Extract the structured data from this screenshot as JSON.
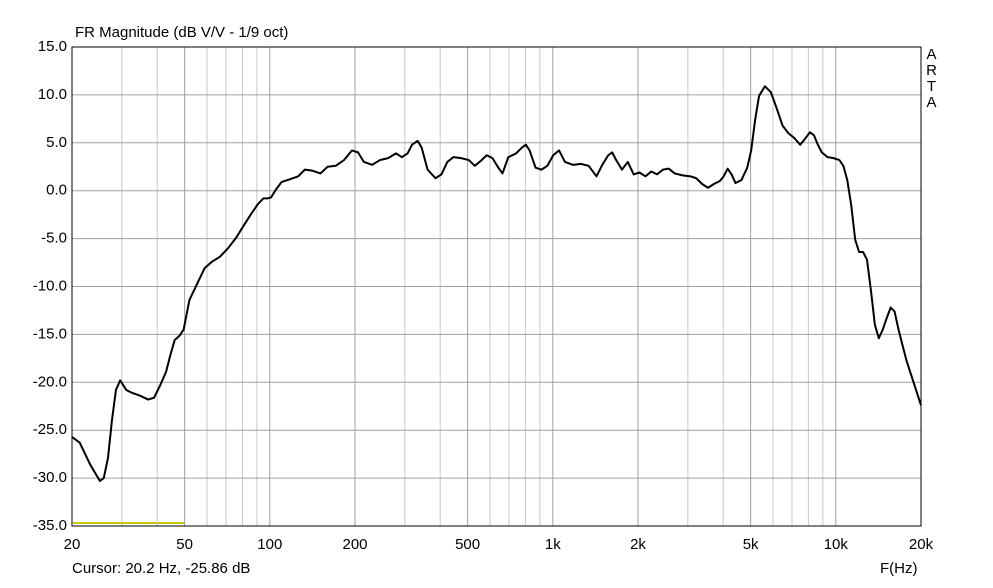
{
  "chart_data": {
    "type": "line",
    "title": "FR Magnitude (dB V/V - 1/9 oct)",
    "brand": "ARTA",
    "xlabel": "F(Hz)",
    "cursor": "Cursor: 20.2 Hz, -25.86 dB",
    "xscale": "log",
    "grid": true,
    "color": "#000000",
    "xlim": [
      20,
      20000
    ],
    "ylim": [
      -35,
      15
    ],
    "xticks": [
      20,
      50,
      100,
      200,
      500,
      {
        "value": 1000,
        "label": "1k"
      },
      {
        "value": 2000,
        "label": "2k"
      },
      {
        "value": 5000,
        "label": "5k"
      },
      {
        "value": 10000,
        "label": "10k"
      },
      {
        "value": 20000,
        "label": "20k"
      }
    ],
    "xminor": [
      30,
      40,
      60,
      70,
      80,
      90,
      300,
      400,
      600,
      700,
      800,
      900,
      3000,
      4000,
      6000,
      7000,
      8000,
      9000
    ],
    "yticks": [
      {
        "value": 15,
        "label": "15.0"
      },
      {
        "value": 10,
        "label": "10.0"
      },
      {
        "value": 5,
        "label": "5.0"
      },
      {
        "value": 0,
        "label": "0.0"
      },
      {
        "value": -5,
        "label": "-5.0"
      },
      {
        "value": -10,
        "label": "-10.0"
      },
      {
        "value": -15,
        "label": "-15.0"
      },
      {
        "value": -20,
        "label": "-20.0"
      },
      {
        "value": -25,
        "label": "-25.0"
      },
      {
        "value": -30,
        "label": "-30.0"
      },
      {
        "value": -35,
        "label": "-35.0"
      }
    ],
    "x": [
      20,
      21.3,
      23.2,
      25.1,
      25.9,
      26.8,
      27.7,
      28.6,
      29.6,
      31.1,
      32.6,
      34.8,
      37.2,
      39,
      41,
      43,
      44.3,
      46.1,
      48.1,
      49.6,
      52,
      55.2,
      58.8,
      62.5,
      66.6,
      71.2,
      76.1,
      81,
      86.5,
      90.8,
      95,
      98.2,
      101,
      105,
      110,
      118,
      126,
      133,
      141,
      151,
      160,
      171,
      183,
      195,
      205,
      215,
      230,
      245,
      262,
      279,
      293,
      307,
      318,
      333,
      344,
      361,
      385,
      404,
      424,
      445,
      474,
      505,
      530,
      556,
      584,
      612,
      642,
      664,
      696,
      742,
      778,
      803,
      828,
      869,
      912,
      957,
      1003,
      1052,
      1104,
      1177,
      1255,
      1338,
      1427,
      1496,
      1570,
      1621,
      1674,
      1755,
      1841,
      1931,
      2025,
      2124,
      2228,
      2336,
      2450,
      2570,
      2696,
      2874,
      3064,
      3213,
      3370,
      3535,
      3708,
      3889,
      4016,
      4147,
      4282,
      4422,
      4638,
      4865,
      5023,
      5187,
      5356,
      5618,
      5893,
      6181,
      6483,
      6800,
      7133,
      7482,
      7726,
      8104,
      8368,
      8641,
      8922,
      9358,
      9816,
      10296,
      10632,
      10978,
      11336,
      11706,
      12087,
      12481,
      12888,
      13308,
      13742,
      14190,
      14652,
      15130,
      15623,
      16132,
      16658,
      17201,
      17761,
      20000
    ],
    "values": [
      -25.7,
      -26.3,
      -28.6,
      -30.3,
      -30,
      -27.9,
      -23.9,
      -20.8,
      -19.8,
      -20.8,
      -21.1,
      -21.4,
      -21.8,
      -21.6,
      -20.3,
      -18.9,
      -17.4,
      -15.6,
      -15.1,
      -14.5,
      -11.4,
      -9.8,
      -8.1,
      -7.4,
      -6.9,
      -6,
      -4.9,
      -3.6,
      -2.3,
      -1.4,
      -0.8,
      -0.8,
      -0.7,
      0.1,
      0.9,
      1.2,
      1.5,
      2.2,
      2.1,
      1.8,
      2.5,
      2.6,
      3.2,
      4.2,
      4,
      3,
      2.7,
      3.2,
      3.4,
      3.9,
      3.5,
      3.9,
      4.8,
      5.2,
      4.5,
      2.2,
      1.3,
      1.7,
      3,
      3.5,
      3.4,
      3.2,
      2.6,
      3.1,
      3.7,
      3.4,
      2.4,
      1.8,
      3.5,
      3.9,
      4.5,
      4.8,
      4.2,
      2.4,
      2.2,
      2.6,
      3.7,
      4.2,
      3,
      2.7,
      2.8,
      2.6,
      1.5,
      2.7,
      3.7,
      4,
      3.2,
      2.2,
      3,
      1.7,
      1.9,
      1.5,
      2,
      1.7,
      2.2,
      2.3,
      1.8,
      1.6,
      1.5,
      1.3,
      0.7,
      0.3,
      0.7,
      1,
      1.5,
      2.3,
      1.7,
      0.8,
      1.1,
      2.4,
      4.2,
      7.4,
      9.9,
      10.9,
      10.3,
      8.6,
      6.8,
      6,
      5.5,
      4.8,
      5.3,
      6.1,
      5.8,
      4.8,
      4,
      3.5,
      3.4,
      3.2,
      2.6,
      1.1,
      -1.5,
      -5.1,
      -6.4,
      -6.4,
      -7.2,
      -10.4,
      -14,
      -15.4,
      -14.5,
      -13.3,
      -12.2,
      -12.6,
      -14.5,
      -16.1,
      -17.7,
      -22.4
    ]
  }
}
